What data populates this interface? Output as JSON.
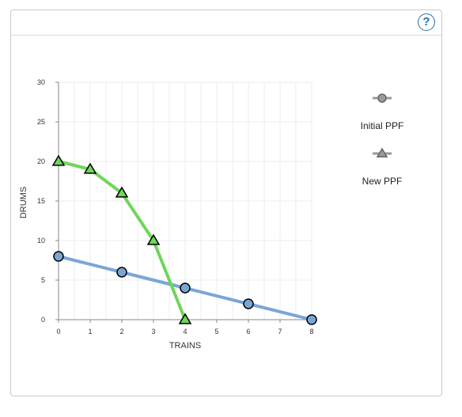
{
  "help": {
    "label": "?"
  },
  "chart_data": {
    "type": "line",
    "xlabel": "TRAINS",
    "ylabel": "DRUMS",
    "xlim": [
      0,
      8
    ],
    "ylim": [
      0,
      30
    ],
    "xticks": [
      0,
      1,
      2,
      3,
      4,
      5,
      6,
      7,
      8
    ],
    "yticks": [
      0,
      5,
      10,
      15,
      20,
      25,
      30
    ],
    "grid": true,
    "legend_placement": "right",
    "series": [
      {
        "name": "Initial PPF",
        "marker": "circle",
        "color": "#7aa6d6",
        "points": [
          {
            "x": 0,
            "y": 8
          },
          {
            "x": 2,
            "y": 6
          },
          {
            "x": 4,
            "y": 4
          },
          {
            "x": 6,
            "y": 2
          },
          {
            "x": 8,
            "y": 0
          }
        ]
      },
      {
        "name": "New PPF",
        "marker": "triangle",
        "color": "#6fd65a",
        "points": [
          {
            "x": 0,
            "y": 20
          },
          {
            "x": 1,
            "y": 19
          },
          {
            "x": 2,
            "y": 16
          },
          {
            "x": 3,
            "y": 10
          },
          {
            "x": 4,
            "y": 0
          }
        ]
      }
    ]
  }
}
